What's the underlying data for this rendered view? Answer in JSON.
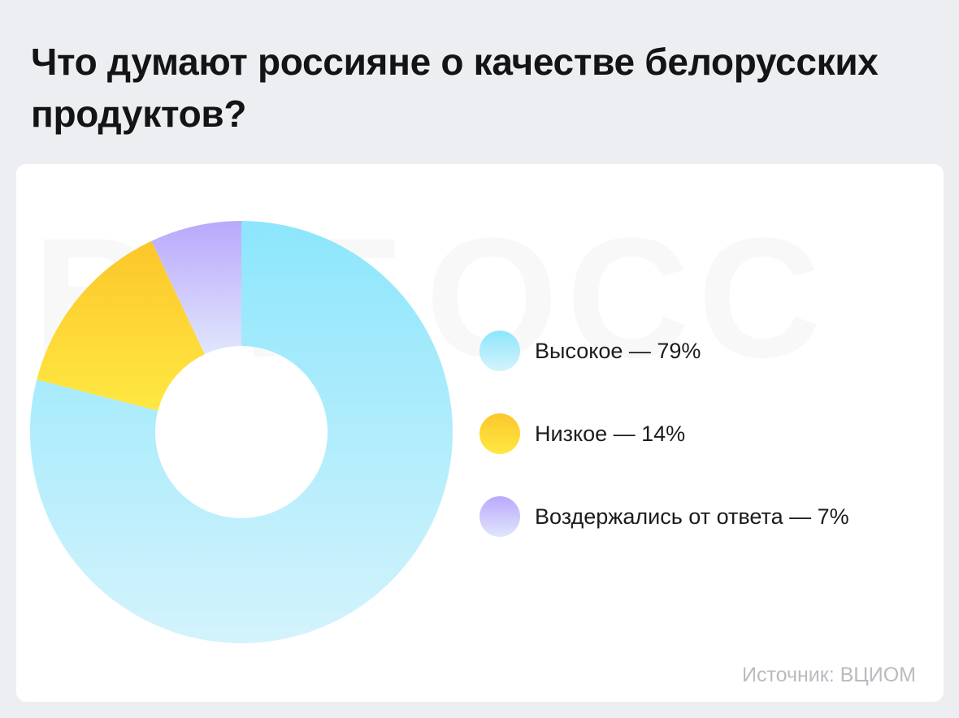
{
  "header": {
    "title": "Что думают россияне о качестве белорусских продуктов?"
  },
  "footer": {
    "source": "Источник: ВЦИОМ"
  },
  "watermark": "ВИБОСС",
  "chart_data": {
    "type": "pie",
    "donut": true,
    "title": "Что думают россияне о качестве белорусских продуктов?",
    "categories": [
      "Высокое",
      "Низкое",
      "Воздержались от ответа"
    ],
    "values": [
      79,
      14,
      7
    ],
    "unit": "%",
    "legend": [
      {
        "label": "Высокое — 79%",
        "color_top": "#8ce6fc",
        "color_bottom": "#d4f3fc"
      },
      {
        "label": "Низкое — 14%",
        "color_top": "#fcc62a",
        "color_bottom": "#ffe842"
      },
      {
        "label": "Воздержались от ответа — 7%",
        "color_top": "#baa8fc",
        "color_bottom": "#e0e6fc"
      }
    ],
    "legend_position": "right"
  }
}
